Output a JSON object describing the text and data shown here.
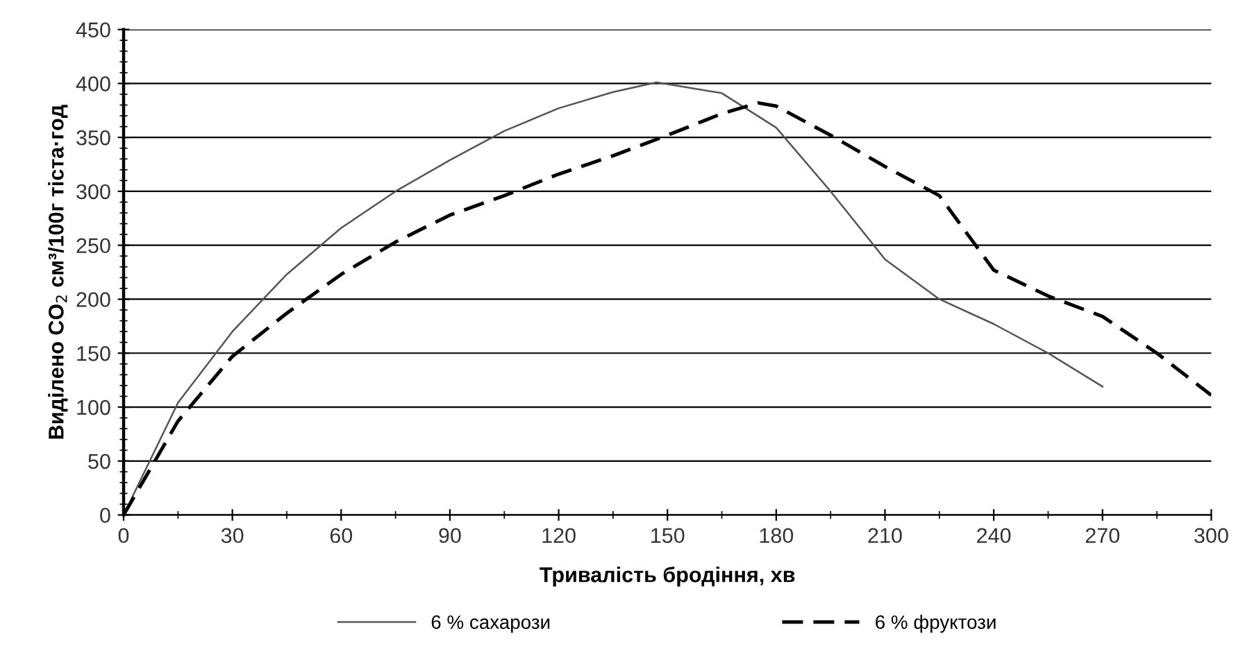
{
  "chart_data": {
    "type": "line",
    "xlabel": "Тривалість бродіння, хв",
    "ylabel": "Виділено CO$_{2}$ см³/100г тіста·год",
    "series": [
      {
        "name": "6 % сахарози",
        "color": "#555555",
        "line_style": "solid",
        "x": [
          0,
          15,
          30,
          45,
          60,
          75,
          90,
          105,
          120,
          135,
          147,
          165,
          180,
          195,
          210,
          225,
          240,
          255,
          270
        ],
        "values": [
          0,
          104,
          170,
          223,
          266,
          300,
          329,
          356,
          377,
          392,
          401,
          391,
          359,
          300,
          237,
          200,
          177,
          150,
          119
        ]
      },
      {
        "name": "6 % фруктози",
        "color": "#000000",
        "line_style": "dashed",
        "x": [
          0,
          15,
          30,
          45,
          60,
          75,
          90,
          105,
          120,
          135,
          150,
          165,
          175,
          180,
          195,
          210,
          225,
          240,
          255,
          270,
          285,
          300
        ],
        "values": [
          0,
          87,
          147,
          187,
          223,
          253,
          278,
          296,
          316,
          333,
          352,
          372,
          382,
          379,
          352,
          323,
          296,
          227,
          203,
          184,
          150,
          111
        ]
      }
    ],
    "xlim": [
      0,
      300
    ],
    "xticks": [
      0,
      30,
      60,
      90,
      120,
      150,
      180,
      210,
      240,
      270,
      300
    ],
    "ylim": [
      0,
      450
    ],
    "yticks": [
      0,
      50,
      100,
      150,
      200,
      250,
      300,
      350,
      400,
      450
    ],
    "grid": "y",
    "legend": "bottom"
  }
}
